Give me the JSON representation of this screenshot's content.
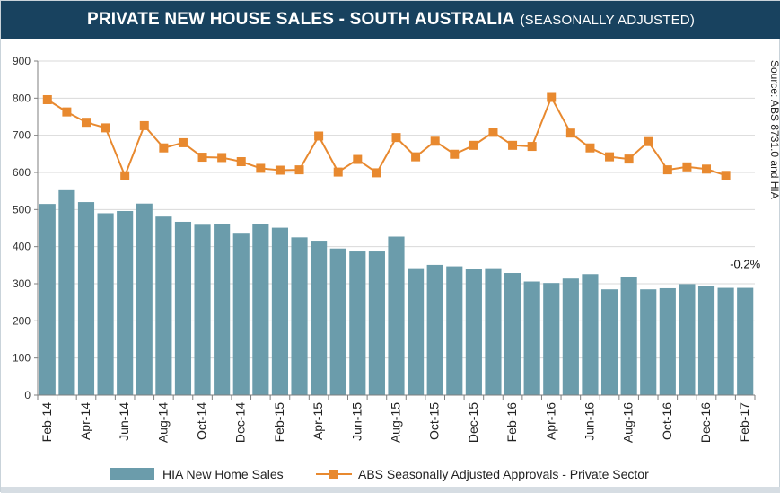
{
  "header": {
    "title": "PRIVATE NEW HOUSE SALES -  SOUTH AUSTRALIA",
    "subtitle": "(SEASONALLY ADJUSTED)"
  },
  "chart_data": {
    "type": "bar+line",
    "title": "PRIVATE NEW HOUSE SALES -  SOUTH AUSTRALIA (SEASONALLY ADJUSTED)",
    "ylim": [
      0,
      900
    ],
    "yticks": [
      0,
      100,
      200,
      300,
      400,
      500,
      600,
      700,
      800,
      900
    ],
    "months": [
      "Feb-14",
      "Mar-14",
      "Apr-14",
      "May-14",
      "Jun-14",
      "Jul-14",
      "Aug-14",
      "Sep-14",
      "Oct-14",
      "Nov-14",
      "Dec-14",
      "Jan-15",
      "Feb-15",
      "Mar-15",
      "Apr-15",
      "May-15",
      "Jun-15",
      "Jul-15",
      "Aug-15",
      "Sep-15",
      "Oct-15",
      "Nov-15",
      "Dec-15",
      "Jan-16",
      "Feb-16",
      "Mar-16",
      "Apr-16",
      "May-16",
      "Jun-16",
      "Jul-16",
      "Aug-16",
      "Sep-16",
      "Oct-16",
      "Nov-16",
      "Dec-16",
      "Jan-17",
      "Feb-17"
    ],
    "tick_labels": [
      "Feb-14",
      "Apr-14",
      "Jun-14",
      "Aug-14",
      "Oct-14",
      "Dec-14",
      "Feb-15",
      "Apr-15",
      "Jun-15",
      "Aug-15",
      "Oct-15",
      "Dec-15",
      "Feb-16",
      "Apr-16",
      "Jun-16",
      "Aug-16",
      "Oct-16",
      "Dec-16",
      "Feb-17"
    ],
    "series": [
      {
        "name": "HIA New Home Sales",
        "kind": "bar",
        "color": "#6b9cab",
        "values": [
          515,
          552,
          520,
          490,
          496,
          516,
          481,
          467,
          459,
          460,
          435,
          460,
          451,
          425,
          416,
          395,
          387,
          387,
          427,
          342,
          351,
          347,
          341,
          342,
          329,
          306,
          302,
          314,
          326,
          285,
          319,
          285,
          288,
          299,
          293,
          289,
          289
        ]
      },
      {
        "name": "ABS Seasonally Adjusted Approvals - Private Sector",
        "kind": "line",
        "color": "#e8892f",
        "values": [
          796,
          763,
          735,
          720,
          591,
          726,
          666,
          680,
          641,
          640,
          629,
          611,
          606,
          607,
          698,
          601,
          635,
          599,
          694,
          642,
          684,
          649,
          673,
          708,
          673,
          670,
          802,
          706,
          666,
          642,
          636,
          683,
          607,
          615,
          609,
          592
        ]
      }
    ],
    "annotation": "-0.2%",
    "source": "Source: ABS 8731.0 and HIA"
  }
}
